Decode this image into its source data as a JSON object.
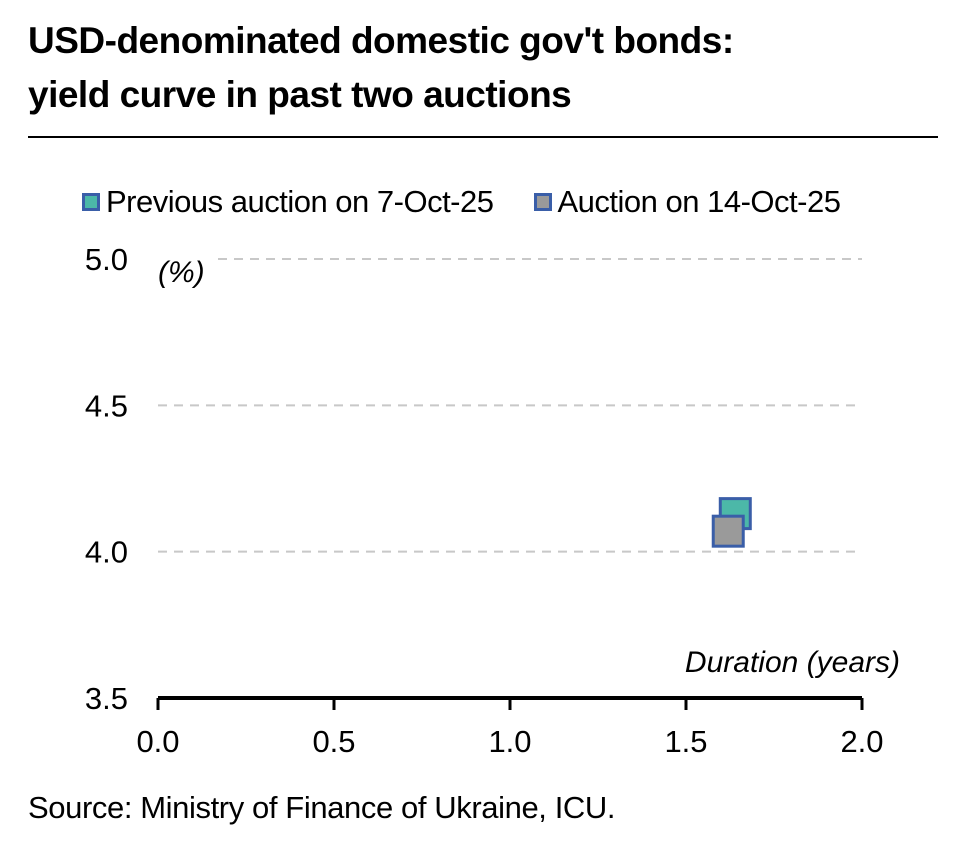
{
  "title_line1": "USD-denominated domestic gov't bonds:",
  "title_line2": "yield curve in past two auctions",
  "source": "Source: Ministry of Finance of Ukraine, ICU.",
  "chart_data": {
    "type": "scatter",
    "ylabel": "(%)",
    "xlabel": "Duration (years)",
    "xlim": [
      0.0,
      2.0
    ],
    "ylim": [
      3.5,
      5.0
    ],
    "x_ticks": [
      "0.0",
      "0.5",
      "1.0",
      "1.5",
      "2.0"
    ],
    "y_ticks": [
      "3.5",
      "4.0",
      "4.5",
      "5.0"
    ],
    "grid": "horizontal dashed",
    "legend_position": "top",
    "series": [
      {
        "name": "Previous auction on 7-Oct-25",
        "color": "#4cb8a8",
        "border": "#3a5ea8",
        "points": [
          {
            "x": 1.64,
            "y": 4.13
          }
        ]
      },
      {
        "name": "Auction on 14-Oct-25",
        "color": "#9a9a9a",
        "border": "#3a5ea8",
        "points": [
          {
            "x": 1.62,
            "y": 4.07
          }
        ]
      }
    ]
  }
}
